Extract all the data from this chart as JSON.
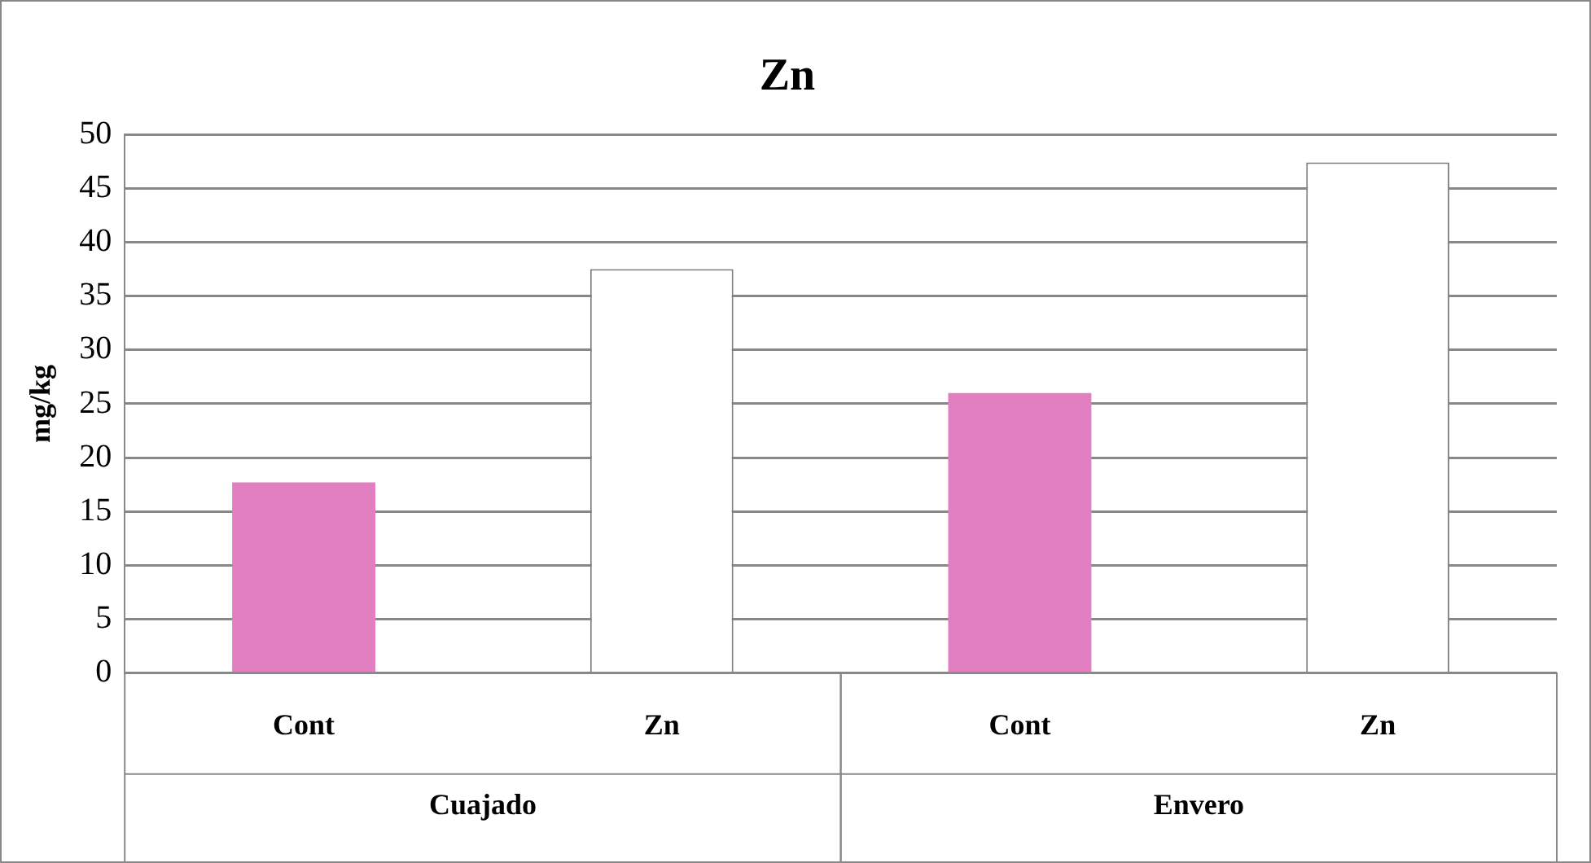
{
  "chart_data": {
    "type": "bar",
    "title": "Zn",
    "ylabel": "mg/kg",
    "categories": [
      "Cont",
      "Zn",
      "Cont",
      "Zn"
    ],
    "values": [
      17.7,
      37.5,
      26.0,
      47.4
    ],
    "colors": [
      "#e27fc0",
      "#ffffff",
      "#e27fc0",
      "#ffffff"
    ],
    "annotations": [
      "Cuajado",
      "Envero"
    ],
    "ylim": [
      0,
      50
    ],
    "yticks": [
      0,
      5,
      10,
      15,
      20,
      25,
      30,
      35,
      40,
      45,
      50
    ],
    "grid": "y",
    "legend": false
  }
}
